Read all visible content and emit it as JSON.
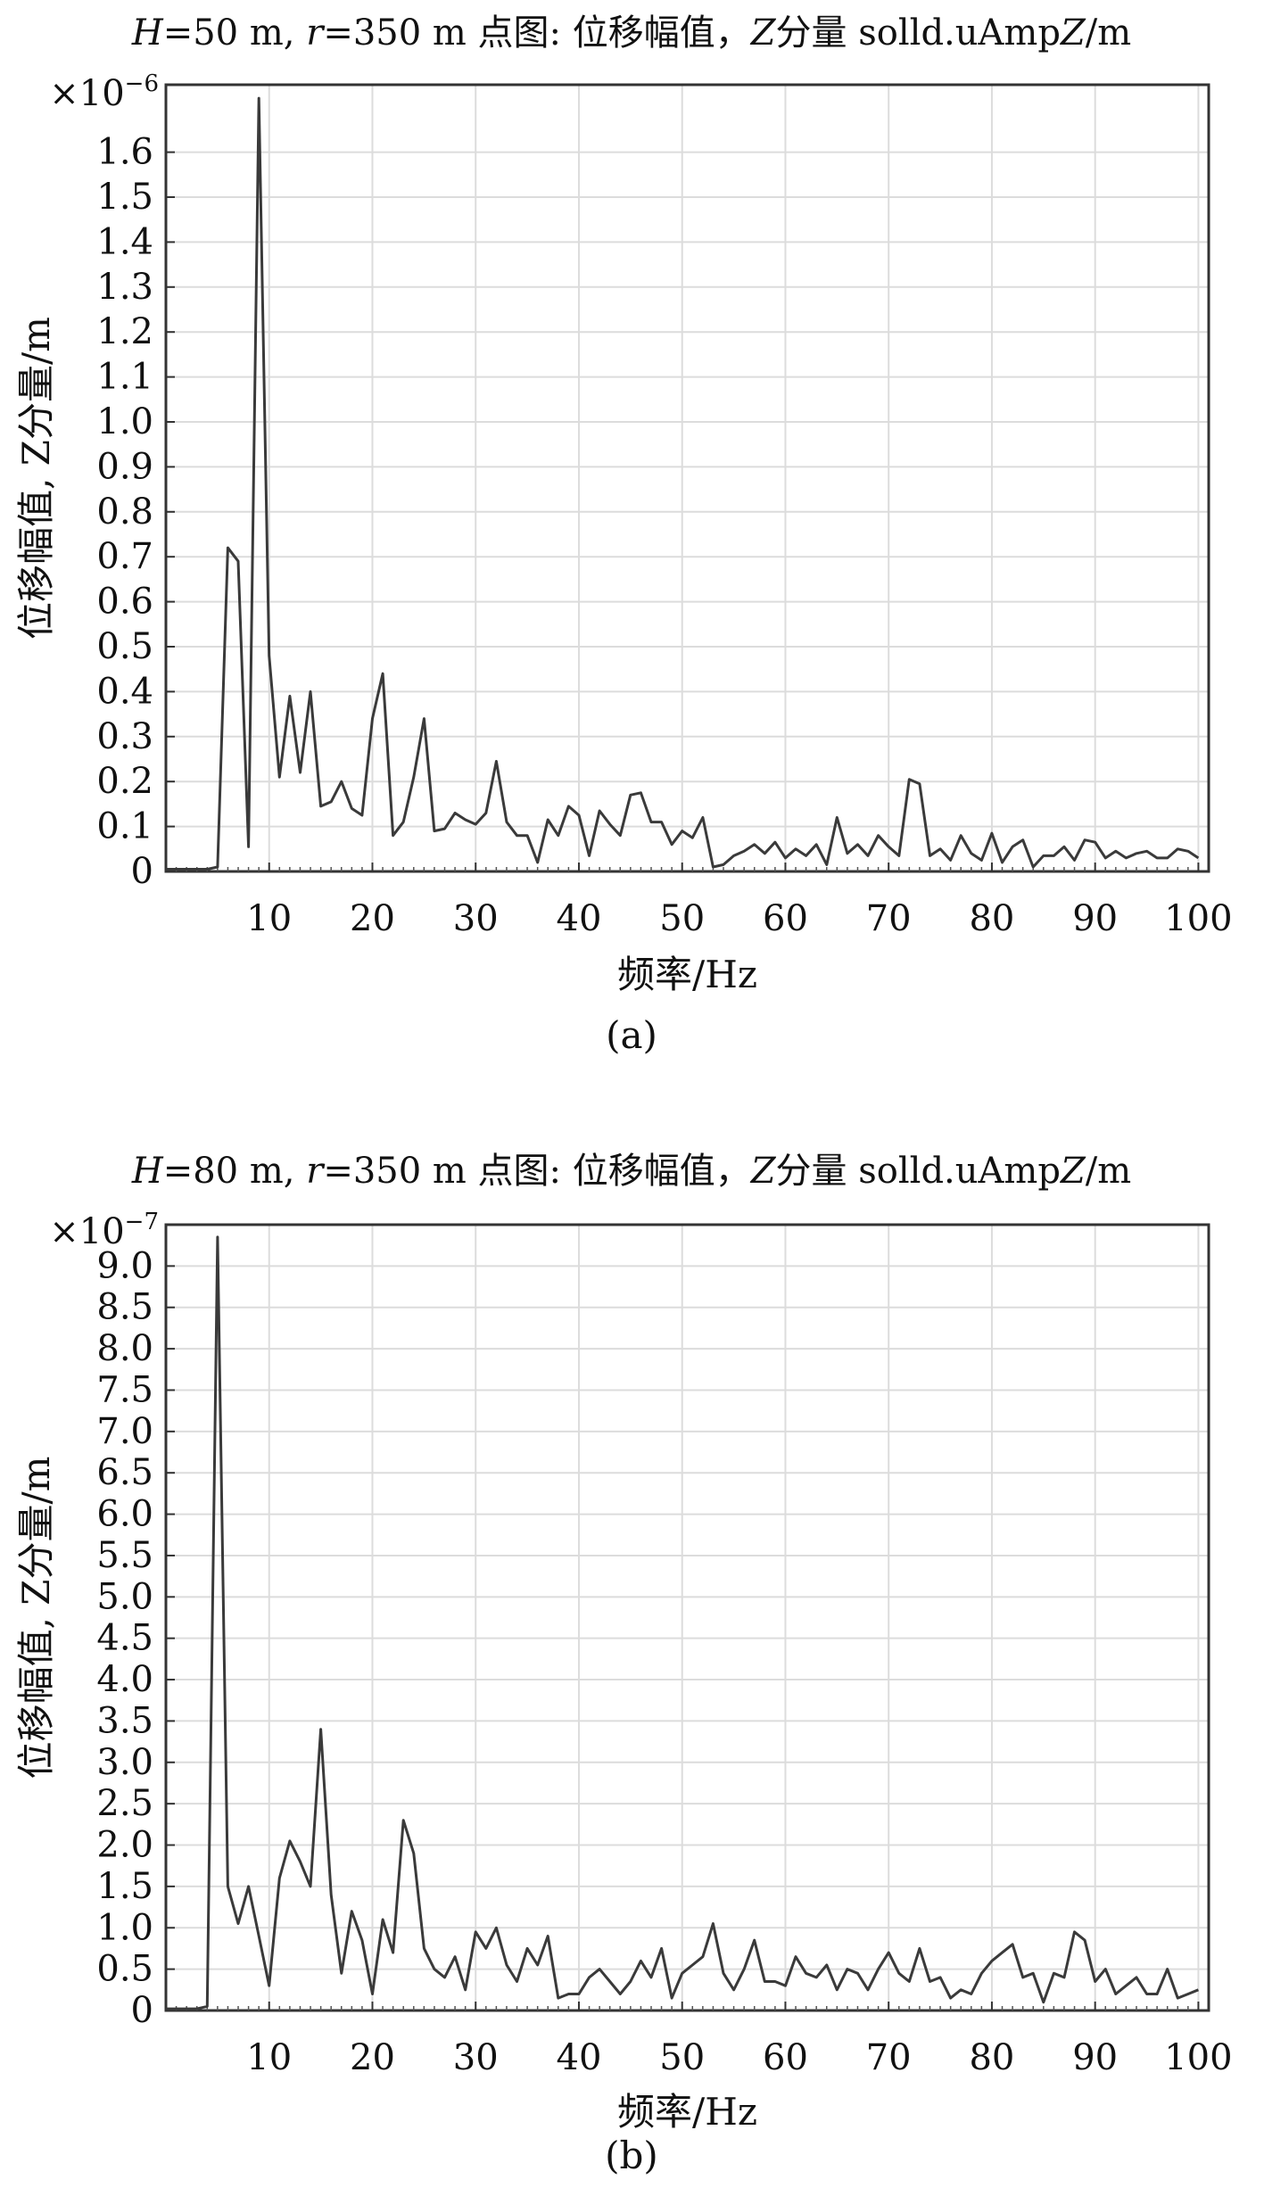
{
  "chart_data": [
    {
      "type": "line",
      "title_prefix_H": "H",
      "title_eq_H": "=50 m, ",
      "title_prefix_r": "r",
      "title_rest": "=350 m 点图: 位移幅值，",
      "title_Z": "Z",
      "title_tail": "分量 solld.uAmp",
      "title_Z2": "Z",
      "title_end": "/m",
      "multiplier_base": "×10",
      "multiplier_exp": "−6",
      "ylabel": "位移幅值, Z分量/m",
      "xlabel": "频率/Hz",
      "caption": "(a)",
      "xlim": [
        0,
        101
      ],
      "ylim": [
        0,
        1.75
      ],
      "xticks": [
        10,
        20,
        30,
        40,
        50,
        60,
        70,
        80,
        90,
        100
      ],
      "yticks": [
        0,
        0.1,
        0.2,
        0.3,
        0.4,
        0.5,
        0.6,
        0.7,
        0.8,
        0.9,
        1.0,
        1.1,
        1.2,
        1.3,
        1.4,
        1.5,
        1.6
      ],
      "ytick_labels": [
        "0",
        "0.1",
        "0.2",
        "0.3",
        "0.4",
        "0.5",
        "0.6",
        "0.7",
        "0.8",
        "0.9",
        "1.0",
        "1.1",
        "1.2",
        "1.3",
        "1.4",
        "1.5",
        "1.6"
      ],
      "grid": true,
      "x": [
        0,
        1,
        2,
        3,
        4,
        5,
        6,
        7,
        8,
        9,
        10,
        11,
        12,
        13,
        14,
        15,
        16,
        17,
        18,
        19,
        20,
        21,
        22,
        23,
        24,
        25,
        26,
        27,
        28,
        29,
        30,
        31,
        32,
        33,
        34,
        35,
        36,
        37,
        38,
        39,
        40,
        41,
        42,
        43,
        44,
        45,
        46,
        47,
        48,
        49,
        50,
        51,
        52,
        53,
        54,
        55,
        56,
        57,
        58,
        59,
        60,
        61,
        62,
        63,
        64,
        65,
        66,
        67,
        68,
        69,
        70,
        71,
        72,
        73,
        74,
        75,
        76,
        77,
        78,
        79,
        80,
        81,
        82,
        83,
        84,
        85,
        86,
        87,
        88,
        89,
        90,
        91,
        92,
        93,
        94,
        95,
        96,
        97,
        98,
        99,
        100
      ],
      "y": [
        0.005,
        0.005,
        0.005,
        0.005,
        0.005,
        0.01,
        0.72,
        0.69,
        0.055,
        1.72,
        0.48,
        0.21,
        0.39,
        0.22,
        0.4,
        0.145,
        0.155,
        0.2,
        0.14,
        0.125,
        0.34,
        0.44,
        0.08,
        0.11,
        0.21,
        0.34,
        0.09,
        0.095,
        0.13,
        0.115,
        0.105,
        0.13,
        0.245,
        0.11,
        0.08,
        0.08,
        0.02,
        0.115,
        0.08,
        0.145,
        0.125,
        0.035,
        0.135,
        0.105,
        0.08,
        0.17,
        0.175,
        0.11,
        0.11,
        0.06,
        0.09,
        0.075,
        0.12,
        0.01,
        0.015,
        0.035,
        0.045,
        0.06,
        0.04,
        0.065,
        0.03,
        0.05,
        0.035,
        0.06,
        0.015,
        0.12,
        0.04,
        0.06,
        0.035,
        0.08,
        0.055,
        0.035,
        0.205,
        0.195,
        0.035,
        0.05,
        0.025,
        0.08,
        0.04,
        0.025,
        0.085,
        0.02,
        0.055,
        0.07,
        0.01,
        0.035,
        0.035,
        0.055,
        0.025,
        0.07,
        0.065,
        0.03,
        0.045,
        0.03,
        0.04,
        0.045,
        0.03,
        0.03,
        0.05,
        0.045,
        0.03
      ]
    },
    {
      "type": "line",
      "title_prefix_H": "H",
      "title_eq_H": "=80 m, ",
      "title_prefix_r": "r",
      "title_rest": "=350 m 点图: 位移幅值，",
      "title_Z": "Z",
      "title_tail": "分量 solld.uAmp",
      "title_Z2": "Z",
      "title_end": "/m",
      "multiplier_base": "×10",
      "multiplier_exp": "−7",
      "ylabel": "位移幅值, Z分量/m",
      "xlabel": "频率/Hz",
      "caption": "(b)",
      "xlim": [
        0,
        101
      ],
      "ylim": [
        0,
        9.5
      ],
      "xticks": [
        10,
        20,
        30,
        40,
        50,
        60,
        70,
        80,
        90,
        100
      ],
      "yticks": [
        0,
        0.5,
        1.0,
        1.5,
        2.0,
        2.5,
        3.0,
        3.5,
        4.0,
        4.5,
        5.0,
        5.5,
        6.0,
        6.5,
        7.0,
        7.5,
        8.0,
        8.5,
        9.0
      ],
      "ytick_labels": [
        "0",
        "0.5",
        "1.0",
        "1.5",
        "2.0",
        "2.5",
        "3.0",
        "3.5",
        "4.0",
        "4.5",
        "5.0",
        "5.5",
        "6.0",
        "6.5",
        "7.0",
        "7.5",
        "8.0",
        "8.5",
        "9.0"
      ],
      "grid": true,
      "x": [
        0,
        1,
        2,
        3,
        4,
        5,
        6,
        7,
        8,
        9,
        10,
        11,
        12,
        13,
        14,
        15,
        16,
        17,
        18,
        19,
        20,
        21,
        22,
        23,
        24,
        25,
        26,
        27,
        28,
        29,
        30,
        31,
        32,
        33,
        34,
        35,
        36,
        37,
        38,
        39,
        40,
        41,
        42,
        43,
        44,
        45,
        46,
        47,
        48,
        49,
        50,
        51,
        52,
        53,
        54,
        55,
        56,
        57,
        58,
        59,
        60,
        61,
        62,
        63,
        64,
        65,
        66,
        67,
        68,
        69,
        70,
        71,
        72,
        73,
        74,
        75,
        76,
        77,
        78,
        79,
        80,
        81,
        82,
        83,
        84,
        85,
        86,
        87,
        88,
        89,
        90,
        91,
        92,
        93,
        94,
        95,
        96,
        97,
        98,
        99,
        100
      ],
      "y": [
        0.02,
        0.02,
        0.02,
        0.02,
        0.05,
        9.35,
        1.5,
        1.05,
        1.5,
        0.9,
        0.3,
        1.6,
        2.05,
        1.8,
        1.5,
        3.4,
        1.4,
        0.45,
        1.2,
        0.85,
        0.2,
        1.1,
        0.7,
        2.3,
        1.9,
        0.75,
        0.5,
        0.4,
        0.65,
        0.25,
        0.95,
        0.75,
        1.0,
        0.55,
        0.35,
        0.75,
        0.55,
        0.9,
        0.15,
        0.2,
        0.2,
        0.4,
        0.5,
        0.35,
        0.2,
        0.35,
        0.6,
        0.4,
        0.75,
        0.15,
        0.45,
        0.55,
        0.65,
        1.05,
        0.45,
        0.25,
        0.5,
        0.85,
        0.35,
        0.35,
        0.3,
        0.65,
        0.45,
        0.4,
        0.55,
        0.25,
        0.5,
        0.45,
        0.25,
        0.5,
        0.7,
        0.45,
        0.35,
        0.75,
        0.35,
        0.4,
        0.15,
        0.25,
        0.2,
        0.45,
        0.6,
        0.7,
        0.8,
        0.4,
        0.45,
        0.1,
        0.45,
        0.4,
        0.95,
        0.85,
        0.35,
        0.5,
        0.2,
        0.3,
        0.4,
        0.2,
        0.2,
        0.5,
        0.15,
        0.2,
        0.25
      ]
    }
  ]
}
